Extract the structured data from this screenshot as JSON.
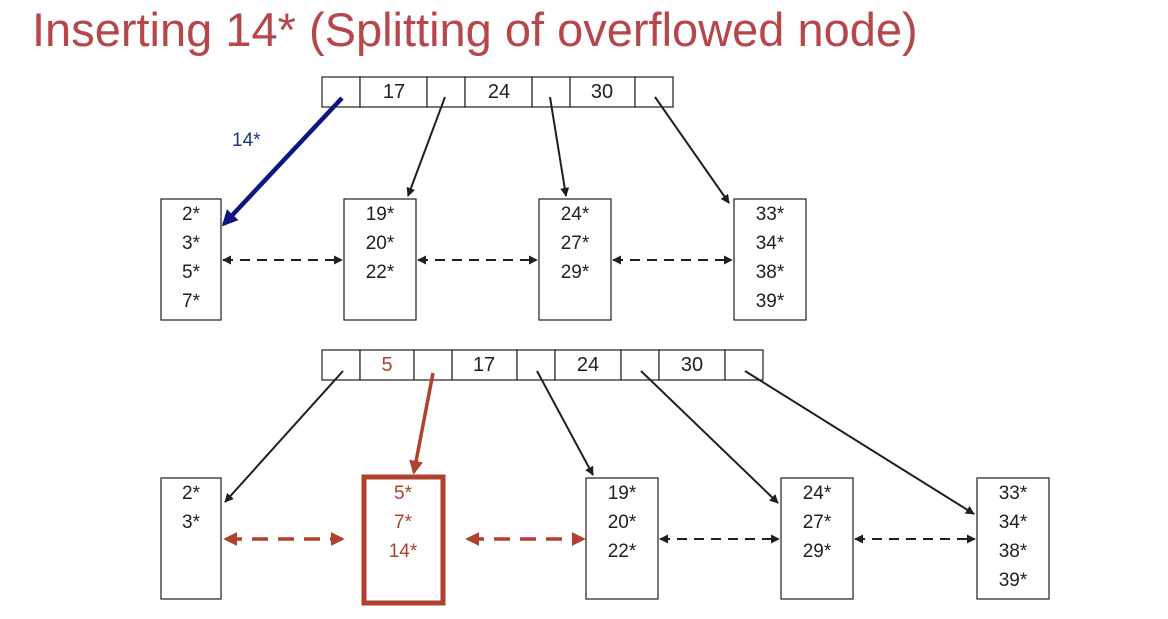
{
  "title": "Inserting 14* (Splitting of overflowed node)",
  "colors": {
    "title": "#b5474b",
    "insert_arrow": "#0d1680",
    "highlight": "#b0412e",
    "ink": "#1f1f1f"
  },
  "before": {
    "insert_label": "14*",
    "root_keys": [
      "17",
      "24",
      "30"
    ],
    "leaves": [
      [
        "2*",
        "3*",
        "5*",
        "7*"
      ],
      [
        "19*",
        "20*",
        "22*"
      ],
      [
        "24*",
        "27*",
        "29*"
      ],
      [
        "33*",
        "34*",
        "38*",
        "39*"
      ]
    ]
  },
  "after": {
    "root_keys": [
      "5",
      "17",
      "24",
      "30"
    ],
    "new_key": "5",
    "leaves": [
      [
        "2*",
        "3*"
      ],
      [
        "5*",
        "7*",
        "14*"
      ],
      [
        "19*",
        "20*",
        "22*"
      ],
      [
        "24*",
        "27*",
        "29*"
      ],
      [
        "33*",
        "34*",
        "38*",
        "39*"
      ]
    ],
    "new_leaf_index": 1
  }
}
